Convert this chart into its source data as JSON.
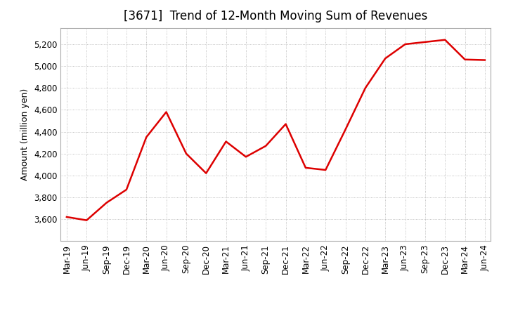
{
  "title": "[3671]  Trend of 12-Month Moving Sum of Revenues",
  "ylabel": "Amount (million yen)",
  "line_color": "#dd0000",
  "background_color": "#ffffff",
  "plot_background": "#ffffff",
  "grid_color": "#b0b0b0",
  "xlabels": [
    "Mar-19",
    "Jun-19",
    "Sep-19",
    "Dec-19",
    "Mar-20",
    "Jun-20",
    "Sep-20",
    "Dec-20",
    "Mar-21",
    "Jun-21",
    "Sep-21",
    "Dec-21",
    "Mar-22",
    "Jun-22",
    "Sep-22",
    "Dec-22",
    "Mar-23",
    "Jun-23",
    "Sep-23",
    "Dec-23",
    "Mar-24",
    "Jun-24"
  ],
  "values": [
    3620,
    3590,
    3750,
    3870,
    4350,
    4580,
    4200,
    4020,
    4310,
    4170,
    4270,
    4470,
    4070,
    4050,
    4420,
    4800,
    5070,
    5200,
    5220,
    5240,
    5060,
    5055
  ],
  "ylim": [
    3400,
    5350
  ],
  "yticks": [
    3600,
    3800,
    4000,
    4200,
    4400,
    4600,
    4800,
    5000,
    5200
  ],
  "title_fontsize": 12,
  "axis_label_fontsize": 9,
  "tick_fontsize": 8.5,
  "line_width": 1.8
}
